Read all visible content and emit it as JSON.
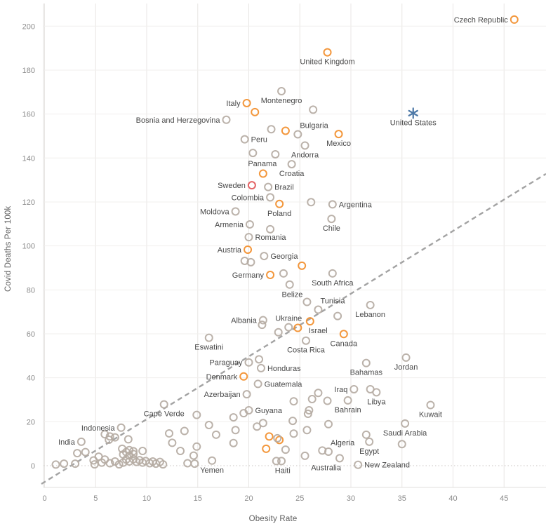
{
  "chart_data": {
    "type": "scatter",
    "title": "",
    "xlabel": "Obesity Rate",
    "ylabel": "Covid Deaths Per 100k",
    "x_ticks": [
      0,
      5,
      10,
      15,
      20,
      25,
      30,
      35,
      40,
      45
    ],
    "y_ticks": [
      0,
      20,
      40,
      60,
      80,
      100,
      120,
      140,
      160,
      180,
      200
    ],
    "xlim": [
      -0.5,
      49.2
    ],
    "ylim": [
      -12,
      212
    ],
    "grid": true,
    "legend": "none",
    "marker_colors": {
      "gray": "#b5aba3",
      "orange": "#f28e2b",
      "red": "#e15759",
      "blue": "#4e79a7"
    },
    "trendline": {
      "style": "dashed",
      "color": "#a3a3a3",
      "x1": -0.31,
      "y1": -8.3,
      "x2": 49.1,
      "y2": 132.8
    },
    "points": [
      {
        "label": "Czech Republic",
        "x": 46.0,
        "y": 203.0,
        "c": "orange",
        "pos": "left"
      },
      {
        "label": "United Kingdom",
        "x": 27.7,
        "y": 188.1,
        "c": "orange",
        "pos": "below"
      },
      {
        "label": "United States",
        "x": 36.1,
        "y": 160.4,
        "c": "blue",
        "marker": "asterisk",
        "pos": "below"
      },
      {
        "label": "Bosnia and Herzegovina",
        "x": 17.8,
        "y": 157.4,
        "c": "gray",
        "pos": "left"
      },
      {
        "label": "Italy",
        "x": 19.8,
        "y": 165.0,
        "c": "orange",
        "pos": "left"
      },
      {
        "label": "Montenegro",
        "x": 23.2,
        "y": 170.4,
        "c": "gray",
        "pos": "below"
      },
      {
        "label": "Bulgaria",
        "x": 24.8,
        "y": 150.8,
        "c": "gray",
        "pos": "above-right"
      },
      {
        "label": "Mexico",
        "x": 28.8,
        "y": 150.9,
        "c": "orange",
        "pos": "below"
      },
      {
        "label": "Peru",
        "x": 19.6,
        "y": 148.5,
        "c": "gray",
        "pos": "right"
      },
      {
        "label": "Andorra",
        "x": 25.5,
        "y": 145.7,
        "c": "gray",
        "pos": "below"
      },
      {
        "label": "Panama",
        "x": 22.6,
        "y": 141.7,
        "c": "gray",
        "pos": "below-left"
      },
      {
        "label": "Croatia",
        "x": 24.2,
        "y": 137.2,
        "c": "gray",
        "pos": "below"
      },
      {
        "label": "Sweden",
        "x": 20.3,
        "y": 127.6,
        "c": "red",
        "pos": "left"
      },
      {
        "label": "Brazil",
        "x": 21.9,
        "y": 126.8,
        "c": "gray",
        "pos": "right"
      },
      {
        "label": "Colombia",
        "x": 22.1,
        "y": 122.1,
        "c": "gray",
        "pos": "left"
      },
      {
        "label": "Poland",
        "x": 23.0,
        "y": 119.1,
        "c": "orange",
        "pos": "below"
      },
      {
        "label": "Moldova",
        "x": 18.7,
        "y": 115.7,
        "c": "gray",
        "pos": "left"
      },
      {
        "label": "Argentina",
        "x": 28.2,
        "y": 118.9,
        "c": "gray",
        "pos": "right"
      },
      {
        "label": "Chile",
        "x": 28.1,
        "y": 112.3,
        "c": "gray",
        "pos": "below"
      },
      {
        "label": "Armenia",
        "x": 20.1,
        "y": 109.8,
        "c": "gray",
        "pos": "left"
      },
      {
        "label": "Romania",
        "x": 20.0,
        "y": 104.0,
        "c": "gray",
        "pos": "right"
      },
      {
        "label": "Austria",
        "x": 19.9,
        "y": 98.3,
        "c": "orange",
        "pos": "left"
      },
      {
        "label": "Georgia",
        "x": 21.5,
        "y": 95.4,
        "c": "gray",
        "pos": "right"
      },
      {
        "label": "Germany",
        "x": 22.1,
        "y": 86.8,
        "c": "orange",
        "pos": "left"
      },
      {
        "label": "South Africa",
        "x": 28.2,
        "y": 87.5,
        "c": "gray",
        "pos": "below"
      },
      {
        "label": "Belize",
        "x": 25.7,
        "y": 74.5,
        "c": "gray",
        "pos": "above-left"
      },
      {
        "label": "Tunisia",
        "x": 26.8,
        "y": 71.0,
        "c": "gray",
        "pos": "above-right"
      },
      {
        "label": "Lebanon",
        "x": 31.9,
        "y": 73.1,
        "c": "gray",
        "pos": "below"
      },
      {
        "label": "Albania",
        "x": 21.4,
        "y": 66.2,
        "c": "gray",
        "pos": "left"
      },
      {
        "label": "Ukraine",
        "x": 23.9,
        "y": 63.0,
        "c": "gray",
        "pos": "above"
      },
      {
        "label": "Israel",
        "x": 26.0,
        "y": 65.7,
        "c": "orange",
        "pos": "below-right"
      },
      {
        "label": "Canada",
        "x": 29.3,
        "y": 59.9,
        "c": "orange",
        "pos": "below"
      },
      {
        "label": "Costa Rica",
        "x": 25.6,
        "y": 56.9,
        "c": "gray",
        "pos": "below"
      },
      {
        "label": "Eswatini",
        "x": 16.1,
        "y": 58.2,
        "c": "gray",
        "pos": "below"
      },
      {
        "label": "Paraguay",
        "x": 20.0,
        "y": 47.0,
        "c": "gray",
        "pos": "left"
      },
      {
        "label": "Honduras",
        "x": 21.2,
        "y": 44.4,
        "c": "gray",
        "pos": "right"
      },
      {
        "label": "Denmark",
        "x": 19.5,
        "y": 40.6,
        "c": "orange",
        "pos": "left"
      },
      {
        "label": "Guatemala",
        "x": 20.9,
        "y": 37.2,
        "c": "gray",
        "pos": "right"
      },
      {
        "label": "Bahamas",
        "x": 31.5,
        "y": 46.7,
        "c": "gray",
        "pos": "below"
      },
      {
        "label": "Jordan",
        "x": 35.4,
        "y": 49.2,
        "c": "gray",
        "pos": "below"
      },
      {
        "label": "Azerbaijan",
        "x": 19.8,
        "y": 32.5,
        "c": "gray",
        "pos": "left"
      },
      {
        "label": "Iraq",
        "x": 30.3,
        "y": 34.8,
        "c": "gray",
        "pos": "left"
      },
      {
        "label": "Libya",
        "x": 32.5,
        "y": 33.4,
        "c": "gray",
        "pos": "below"
      },
      {
        "label": "Bahrain",
        "x": 29.7,
        "y": 29.7,
        "c": "gray",
        "pos": "below"
      },
      {
        "label": "Kuwait",
        "x": 37.8,
        "y": 27.6,
        "c": "gray",
        "pos": "below"
      },
      {
        "label": "Cape Verde",
        "x": 11.7,
        "y": 27.9,
        "c": "gray",
        "pos": "below"
      },
      {
        "label": "Saudi Arabia",
        "x": 35.3,
        "y": 19.2,
        "c": "gray",
        "pos": "below"
      },
      {
        "label": "Indonesia",
        "x": 7.5,
        "y": 17.3,
        "c": "gray",
        "pos": "left"
      },
      {
        "label": "India",
        "x": 3.6,
        "y": 10.9,
        "c": "gray",
        "pos": "left"
      },
      {
        "label": "Algeria",
        "x": 27.8,
        "y": 6.4,
        "c": "gray",
        "pos": "above-right"
      },
      {
        "label": "Egypt",
        "x": 31.8,
        "y": 10.9,
        "c": "gray",
        "pos": "below"
      },
      {
        "label": "Australia",
        "x": 28.9,
        "y": 3.4,
        "c": "gray",
        "pos": "below-left"
      },
      {
        "label": "New Zealand",
        "x": 30.7,
        "y": 0.4,
        "c": "gray",
        "pos": "right"
      },
      {
        "label": "Yemen",
        "x": 16.4,
        "y": 2.3,
        "c": "gray",
        "pos": "below"
      },
      {
        "label": "Haiti",
        "x": 22.7,
        "y": 2.1,
        "c": "gray",
        "pos": "below-right"
      },
      {
        "label": "Guyana",
        "x": 20.0,
        "y": 25.2,
        "c": "gray",
        "pos": "right"
      },
      {
        "label": "",
        "x": 20.6,
        "y": 160.9,
        "c": "orange"
      },
      {
        "label": "",
        "x": 23.6,
        "y": 152.4,
        "c": "orange"
      },
      {
        "label": "",
        "x": 21.4,
        "y": 132.9,
        "c": "orange"
      },
      {
        "label": "",
        "x": 25.2,
        "y": 91.0,
        "c": "orange"
      },
      {
        "label": "",
        "x": 24.8,
        "y": 62.7,
        "c": "orange"
      },
      {
        "label": "",
        "x": 22.0,
        "y": 13.3,
        "c": "orange"
      },
      {
        "label": "",
        "x": 23.0,
        "y": 11.7,
        "c": "orange"
      },
      {
        "label": "",
        "x": 21.7,
        "y": 7.7,
        "c": "orange"
      },
      {
        "label": "",
        "x": 26.3,
        "y": 162.0,
        "c": "gray"
      },
      {
        "label": "",
        "x": 22.2,
        "y": 153.1,
        "c": "gray"
      },
      {
        "label": "",
        "x": 20.4,
        "y": 142.3,
        "c": "gray"
      },
      {
        "label": "",
        "x": 26.1,
        "y": 119.9,
        "c": "gray"
      },
      {
        "label": "",
        "x": 22.1,
        "y": 107.6,
        "c": "gray"
      },
      {
        "label": "",
        "x": 19.6,
        "y": 93.2,
        "c": "gray"
      },
      {
        "label": "",
        "x": 20.2,
        "y": 92.6,
        "c": "gray"
      },
      {
        "label": "",
        "x": 23.4,
        "y": 87.5,
        "c": "gray"
      },
      {
        "label": "",
        "x": 24.0,
        "y": 82.4,
        "c": "gray"
      },
      {
        "label": "",
        "x": 21.3,
        "y": 64.1,
        "c": "gray"
      },
      {
        "label": "",
        "x": 28.7,
        "y": 68.1,
        "c": "gray"
      },
      {
        "label": "",
        "x": 22.9,
        "y": 60.7,
        "c": "gray"
      },
      {
        "label": "",
        "x": 21.0,
        "y": 48.4,
        "c": "gray"
      },
      {
        "label": "",
        "x": 19.5,
        "y": 23.9,
        "c": "gray"
      },
      {
        "label": "",
        "x": 18.5,
        "y": 22.0,
        "c": "gray"
      },
      {
        "label": "",
        "x": 18.7,
        "y": 16.2,
        "c": "gray"
      },
      {
        "label": "",
        "x": 18.5,
        "y": 10.3,
        "c": "gray"
      },
      {
        "label": "",
        "x": 20.8,
        "y": 17.8,
        "c": "gray"
      },
      {
        "label": "",
        "x": 21.4,
        "y": 19.4,
        "c": "gray"
      },
      {
        "label": "",
        "x": 22.8,
        "y": 12.5,
        "c": "gray"
      },
      {
        "label": "",
        "x": 23.6,
        "y": 7.3,
        "c": "gray"
      },
      {
        "label": "",
        "x": 23.2,
        "y": 2.1,
        "c": "gray"
      },
      {
        "label": "",
        "x": 24.4,
        "y": 14.6,
        "c": "gray"
      },
      {
        "label": "",
        "x": 24.3,
        "y": 20.4,
        "c": "gray"
      },
      {
        "label": "",
        "x": 25.7,
        "y": 16.2,
        "c": "gray"
      },
      {
        "label": "",
        "x": 25.8,
        "y": 23.6,
        "c": "gray"
      },
      {
        "label": "",
        "x": 24.4,
        "y": 29.3,
        "c": "gray"
      },
      {
        "label": "",
        "x": 25.5,
        "y": 4.5,
        "c": "gray"
      },
      {
        "label": "",
        "x": 25.9,
        "y": 25.2,
        "c": "gray"
      },
      {
        "label": "",
        "x": 26.2,
        "y": 30.3,
        "c": "gray"
      },
      {
        "label": "",
        "x": 26.8,
        "y": 33.1,
        "c": "gray"
      },
      {
        "label": "",
        "x": 27.7,
        "y": 29.5,
        "c": "gray"
      },
      {
        "label": "",
        "x": 27.8,
        "y": 18.9,
        "c": "gray"
      },
      {
        "label": "",
        "x": 27.2,
        "y": 6.9,
        "c": "gray"
      },
      {
        "label": "",
        "x": 31.9,
        "y": 34.8,
        "c": "gray"
      },
      {
        "label": "",
        "x": 31.5,
        "y": 14.1,
        "c": "gray"
      },
      {
        "label": "",
        "x": 35.0,
        "y": 9.8,
        "c": "gray"
      },
      {
        "label": "",
        "x": 14.9,
        "y": 23.1,
        "c": "gray"
      },
      {
        "label": "",
        "x": 16.1,
        "y": 18.5,
        "c": "gray"
      },
      {
        "label": "",
        "x": 16.8,
        "y": 14.1,
        "c": "gray"
      },
      {
        "label": "",
        "x": 14.9,
        "y": 8.7,
        "c": "gray"
      },
      {
        "label": "",
        "x": 14.0,
        "y": 1.1,
        "c": "gray"
      },
      {
        "label": "",
        "x": 12.2,
        "y": 14.7,
        "c": "gray"
      },
      {
        "label": "",
        "x": 13.7,
        "y": 15.8,
        "c": "gray"
      },
      {
        "label": "",
        "x": 12.5,
        "y": 10.4,
        "c": "gray"
      },
      {
        "label": "",
        "x": 13.3,
        "y": 6.7,
        "c": "gray"
      },
      {
        "label": "",
        "x": 14.6,
        "y": 4.6,
        "c": "gray"
      },
      {
        "label": "",
        "x": 14.7,
        "y": 0.9,
        "c": "gray"
      },
      {
        "label": "",
        "x": 1.1,
        "y": 0.5,
        "c": "gray"
      },
      {
        "label": "",
        "x": 1.9,
        "y": 0.9,
        "c": "gray"
      },
      {
        "label": "",
        "x": 3.0,
        "y": 0.9,
        "c": "gray"
      },
      {
        "label": "",
        "x": 3.2,
        "y": 5.7,
        "c": "gray"
      },
      {
        "label": "",
        "x": 4.0,
        "y": 6.2,
        "c": "gray"
      },
      {
        "label": "",
        "x": 4.8,
        "y": 2.4,
        "c": "gray"
      },
      {
        "label": "",
        "x": 4.9,
        "y": 0.6,
        "c": "gray"
      },
      {
        "label": "",
        "x": 5.3,
        "y": 4.1,
        "c": "gray"
      },
      {
        "label": "",
        "x": 5.6,
        "y": 1.4,
        "c": "gray"
      },
      {
        "label": "",
        "x": 5.9,
        "y": 2.8,
        "c": "gray"
      },
      {
        "label": "",
        "x": 6.4,
        "y": 1.1,
        "c": "gray"
      },
      {
        "label": "",
        "x": 6.9,
        "y": 1.9,
        "c": "gray"
      },
      {
        "label": "",
        "x": 7.3,
        "y": 0.6,
        "c": "gray"
      },
      {
        "label": "",
        "x": 7.7,
        "y": 1.4,
        "c": "gray"
      },
      {
        "label": "",
        "x": 5.9,
        "y": 14.3,
        "c": "gray"
      },
      {
        "label": "",
        "x": 6.4,
        "y": 13.3,
        "c": "gray"
      },
      {
        "label": "",
        "x": 6.9,
        "y": 12.9,
        "c": "gray"
      },
      {
        "label": "",
        "x": 8.2,
        "y": 12.0,
        "c": "gray"
      },
      {
        "label": "",
        "x": 6.3,
        "y": 11.8,
        "c": "gray"
      },
      {
        "label": "",
        "x": 7.6,
        "y": 7.7,
        "c": "gray"
      },
      {
        "label": "",
        "x": 8.3,
        "y": 7.1,
        "c": "gray"
      },
      {
        "label": "",
        "x": 8.7,
        "y": 6.6,
        "c": "gray"
      },
      {
        "label": "",
        "x": 9.6,
        "y": 6.7,
        "c": "gray"
      },
      {
        "label": "",
        "x": 7.7,
        "y": 5.1,
        "c": "gray"
      },
      {
        "label": "",
        "x": 8.0,
        "y": 6.2,
        "c": "gray"
      },
      {
        "label": "",
        "x": 8.3,
        "y": 4.6,
        "c": "gray"
      },
      {
        "label": "",
        "x": 8.7,
        "y": 5.3,
        "c": "gray"
      },
      {
        "label": "",
        "x": 8.0,
        "y": 2.8,
        "c": "gray"
      },
      {
        "label": "",
        "x": 8.3,
        "y": 1.9,
        "c": "gray"
      },
      {
        "label": "",
        "x": 8.7,
        "y": 3.0,
        "c": "gray"
      },
      {
        "label": "",
        "x": 9.0,
        "y": 1.7,
        "c": "gray"
      },
      {
        "label": "",
        "x": 9.3,
        "y": 2.5,
        "c": "gray"
      },
      {
        "label": "",
        "x": 9.6,
        "y": 1.4,
        "c": "gray"
      },
      {
        "label": "",
        "x": 9.9,
        "y": 2.1,
        "c": "gray"
      },
      {
        "label": "",
        "x": 10.3,
        "y": 1.1,
        "c": "gray"
      },
      {
        "label": "",
        "x": 10.6,
        "y": 1.9,
        "c": "gray"
      },
      {
        "label": "",
        "x": 10.9,
        "y": 0.9,
        "c": "gray"
      },
      {
        "label": "",
        "x": 11.3,
        "y": 1.7,
        "c": "gray"
      },
      {
        "label": "",
        "x": 11.6,
        "y": 0.6,
        "c": "gray"
      }
    ]
  }
}
